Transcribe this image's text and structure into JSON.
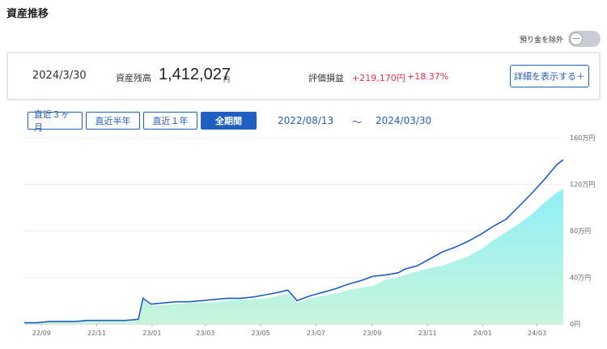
{
  "page_title": "資産推移",
  "toggle": {
    "label": "預り金を除外",
    "state": "off",
    "knob_symbol": "—"
  },
  "summary": {
    "date": "2024/3/30",
    "balance_label": "資産残高",
    "balance_value": "1,412,027",
    "balance_unit": "円",
    "pl_label": "評価損益",
    "pl_value": "+219,170円",
    "pl_percent": "+18.37%",
    "detail_button": "詳細を表示する＋"
  },
  "range_buttons": [
    {
      "label": "直近３ヶ月",
      "active": false
    },
    {
      "label": "直近半年",
      "active": false
    },
    {
      "label": "直近１年",
      "active": false
    },
    {
      "label": "全期間",
      "active": true
    }
  ],
  "period": {
    "from": "2022/08/13",
    "separator": "～",
    "to": "2024/03/30"
  },
  "colors": {
    "accent": "#2860b0",
    "active": "#1f5fbf",
    "negative": "#e0344a",
    "line": "#1f5fbf",
    "area_top": "#8ef0f7",
    "area_bottom": "#c8f5dc"
  },
  "chart_data": {
    "type": "area",
    "x_tick_labels": [
      "22/09",
      "22/11",
      "23/01",
      "23/03",
      "23/05",
      "23/07",
      "23/09",
      "23/11",
      "24/01",
      "24/03"
    ],
    "y_tick_labels": [
      "160万円",
      "120万円",
      "80万円",
      "40万円",
      "0円"
    ],
    "y_ticks": [
      160,
      120,
      80,
      40,
      0
    ],
    "ylim": [
      0,
      160
    ],
    "unit": "万円",
    "x": [
      "22/08/13",
      "22/08/27",
      "22/09/10",
      "22/09/24",
      "22/10/08",
      "22/10/22",
      "22/11/05",
      "22/11/19",
      "22/12/03",
      "22/12/17",
      "22/12/22",
      "22/12/31",
      "23/01/14",
      "23/01/28",
      "23/02/11",
      "23/02/25",
      "23/03/11",
      "23/03/25",
      "23/04/08",
      "23/04/22",
      "23/05/06",
      "23/05/20",
      "23/05/31",
      "23/06/10",
      "23/06/24",
      "23/07/08",
      "23/07/22",
      "23/08/05",
      "23/08/19",
      "23/09/02",
      "23/09/16",
      "23/09/30",
      "23/10/07",
      "23/10/21",
      "23/11/04",
      "23/11/18",
      "23/12/02",
      "23/12/16",
      "23/12/30",
      "24/01/13",
      "24/01/27",
      "24/02/10",
      "24/02/24",
      "24/03/09",
      "24/03/23",
      "24/03/30"
    ],
    "series": [
      {
        "values": [
          1,
          1,
          2,
          2,
          2,
          3,
          3,
          3,
          3,
          4,
          21,
          16,
          16,
          17,
          18,
          18,
          19,
          20,
          21,
          21,
          22,
          24,
          26,
          18,
          22,
          24,
          26,
          29,
          31,
          33,
          38,
          40,
          42,
          45,
          48,
          50,
          54,
          58,
          64,
          72,
          79,
          86,
          94,
          104,
          113,
          116
        ]
      },
      {
        "values": [
          1,
          1,
          2,
          2,
          2,
          3,
          3,
          3,
          3,
          4,
          22,
          17,
          18,
          19,
          19,
          20,
          21,
          22,
          22,
          23,
          25,
          27,
          29,
          20,
          24,
          27,
          30,
          34,
          37,
          41,
          42,
          44,
          47,
          50,
          56,
          62,
          66,
          71,
          77,
          84,
          90,
          101,
          112,
          124,
          137,
          141
        ]
      }
    ]
  }
}
